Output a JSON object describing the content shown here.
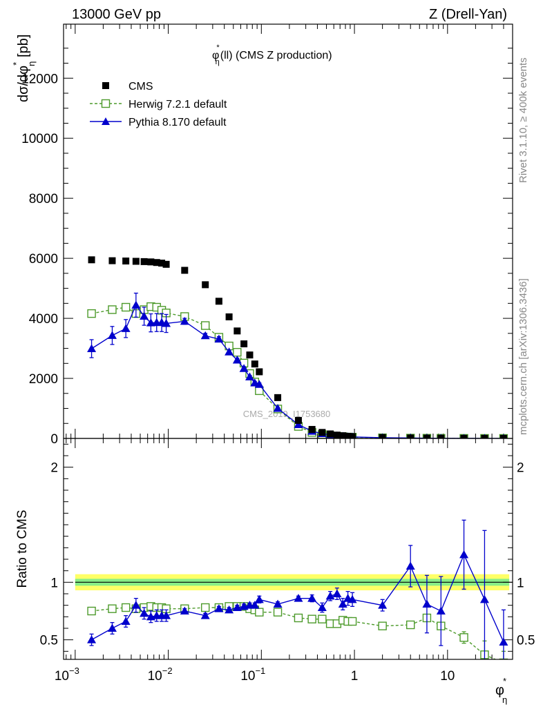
{
  "header": {
    "left": "13000 GeV pp",
    "right": "Z (Drell-Yan)"
  },
  "side_labels": {
    "rivet": "Rivet 3.1.10, ≥ 400k events",
    "mcplots": "mcplots.cern.ch [arXiv:1306.3436]"
  },
  "chart_data": [
    {
      "type": "scatter",
      "panel": "main",
      "title": "φ*η(ll) (CMS Z production)",
      "title_parts": {
        "phi": "φ",
        "star": "*",
        "sub": "η",
        "rest": "(ll) (CMS Z production)"
      },
      "ylabel": "dσ/dφ*η [pb]",
      "ylabel_parts": {
        "pre": "dσ/dφ",
        "star": "*",
        "sub": "η",
        "post": " [pb]"
      },
      "xlabel": "φ*η",
      "xlabel_parts": {
        "phi": "φ",
        "star": "*",
        "sub": "η"
      },
      "x_scale": "log",
      "xlim": [
        0.00075,
        50
      ],
      "ylim": [
        0,
        13800
      ],
      "y_ticks": [
        0,
        2000,
        4000,
        6000,
        8000,
        10000,
        12000
      ],
      "y_tick_labels": [
        "0",
        "2000",
        "4000",
        "6000",
        "8000",
        "10000",
        "12000"
      ],
      "watermark": "CMS_2019_I1753680",
      "legend_position": "top-left",
      "x": [
        0.0015,
        0.0025,
        0.0035,
        0.0045,
        0.0055,
        0.0065,
        0.0075,
        0.0085,
        0.0095,
        0.015,
        0.025,
        0.035,
        0.045,
        0.055,
        0.065,
        0.075,
        0.085,
        0.095,
        0.15,
        0.25,
        0.35,
        0.45,
        0.55,
        0.65,
        0.75,
        0.85,
        0.95,
        2,
        4,
        6,
        8.5,
        15,
        25,
        40
      ],
      "series": [
        {
          "name": "CMS",
          "style": "data",
          "color": "#000000",
          "y": [
            5950,
            5920,
            5910,
            5900,
            5890,
            5880,
            5860,
            5840,
            5800,
            5600,
            5120,
            4570,
            4050,
            3580,
            3150,
            2780,
            2480,
            2220,
            1360,
            600,
            300,
            200,
            150,
            110,
            90,
            70,
            60,
            30,
            15,
            10,
            7,
            4,
            3,
            2
          ]
        },
        {
          "name": "Herwig 7.2.1 default",
          "style": "open-square-dashed",
          "color": "#4c9a2a",
          "y": [
            4160,
            4290,
            4370,
            4160,
            4290,
            4390,
            4370,
            4270,
            4180,
            4060,
            3760,
            3370,
            3080,
            2870,
            2510,
            2160,
            1880,
            1590,
            980,
            400,
            200,
            130,
            90,
            70,
            60,
            45,
            40,
            20,
            10,
            7,
            5,
            2,
            1,
            0.5
          ]
        },
        {
          "name": "Pythia 8.170 default",
          "style": "filled-triangle-solid",
          "color": "#0000cc",
          "y": [
            2990,
            3430,
            3660,
            4440,
            4070,
            3850,
            3860,
            3860,
            3830,
            3900,
            3420,
            3310,
            2880,
            2610,
            2330,
            2050,
            1850,
            1800,
            1000,
            460,
            240,
            160,
            120,
            85,
            70,
            55,
            50,
            25,
            15,
            8,
            5,
            3,
            2,
            1
          ],
          "yerr": [
            300,
            300,
            300,
            400,
            300,
            300,
            300,
            300,
            300,
            100,
            80,
            80,
            60,
            60,
            60,
            50,
            50,
            50,
            30,
            20,
            15,
            15,
            10,
            10,
            10,
            10,
            10,
            5,
            5,
            3,
            3,
            2,
            1,
            1
          ]
        }
      ]
    },
    {
      "type": "scatter",
      "panel": "ratio",
      "ylabel": "Ratio to CMS",
      "x_scale": "log",
      "xlim": [
        0.00075,
        50
      ],
      "ylim": [
        0.33,
        2.25
      ],
      "y_ticks": [
        0.5,
        1,
        2
      ],
      "y_tick_labels": [
        "0.5",
        "1",
        "2"
      ],
      "x_ticks": [
        0.001,
        0.01,
        0.1,
        1,
        10
      ],
      "x_tick_labels": [
        {
          "base": "10",
          "exp": "−3"
        },
        {
          "base": "10",
          "exp": "−2"
        },
        {
          "base": "10",
          "exp": "−1"
        },
        {
          "base": "1",
          "exp": ""
        },
        {
          "base": "10",
          "exp": ""
        }
      ],
      "reference_band": {
        "inner": 0.03,
        "outer": 0.07,
        "inner_color": "#88ee88",
        "outer_color": "#ffff66",
        "line_color": "#000000"
      },
      "x": [
        0.0015,
        0.0025,
        0.0035,
        0.0045,
        0.0055,
        0.0065,
        0.0075,
        0.0085,
        0.0095,
        0.015,
        0.025,
        0.035,
        0.045,
        0.055,
        0.065,
        0.075,
        0.085,
        0.095,
        0.15,
        0.25,
        0.35,
        0.45,
        0.55,
        0.65,
        0.75,
        0.85,
        0.95,
        2,
        4,
        6,
        8.5,
        15,
        25,
        40
      ],
      "series": [
        {
          "name": "Herwig 7.2.1 default",
          "style": "open-square-dashed",
          "color": "#4c9a2a",
          "y": [
            0.75,
            0.77,
            0.78,
            0.77,
            0.78,
            0.79,
            0.78,
            0.78,
            0.77,
            0.77,
            0.78,
            0.78,
            0.79,
            0.79,
            0.79,
            0.77,
            0.76,
            0.74,
            0.74,
            0.69,
            0.68,
            0.68,
            0.64,
            0.64,
            0.67,
            0.66,
            0.66,
            0.62,
            0.63,
            0.69,
            0.62,
            0.52,
            0.37,
            0.3
          ],
          "yerr": [
            0.01,
            0.01,
            0.01,
            0.01,
            0.01,
            0.01,
            0.01,
            0.01,
            0.01,
            0.01,
            0.01,
            0.01,
            0.01,
            0.01,
            0.01,
            0.01,
            0.01,
            0.01,
            0.01,
            0.01,
            0.01,
            0.01,
            0.01,
            0.01,
            0.01,
            0.01,
            0.01,
            0.01,
            0.02,
            0.03,
            0.03,
            0.05,
            0.12,
            0.1
          ]
        },
        {
          "name": "Pythia 8.170 default",
          "style": "filled-triangle-solid",
          "color": "#0000cc",
          "y": [
            0.5,
            0.6,
            0.66,
            0.8,
            0.73,
            0.7,
            0.71,
            0.71,
            0.71,
            0.75,
            0.71,
            0.77,
            0.76,
            0.78,
            0.79,
            0.8,
            0.8,
            0.85,
            0.81,
            0.86,
            0.86,
            0.78,
            0.88,
            0.9,
            0.81,
            0.86,
            0.85,
            0.8,
            1.14,
            0.81,
            0.75,
            1.24,
            0.85,
            0.48
          ],
          "yerr": [
            0.05,
            0.05,
            0.05,
            0.06,
            0.05,
            0.05,
            0.05,
            0.05,
            0.05,
            0.02,
            0.02,
            0.02,
            0.02,
            0.02,
            0.02,
            0.02,
            0.02,
            0.03,
            0.02,
            0.02,
            0.03,
            0.04,
            0.04,
            0.05,
            0.05,
            0.06,
            0.06,
            0.05,
            0.18,
            0.25,
            0.3,
            0.3,
            0.6,
            0.28
          ]
        }
      ]
    }
  ]
}
